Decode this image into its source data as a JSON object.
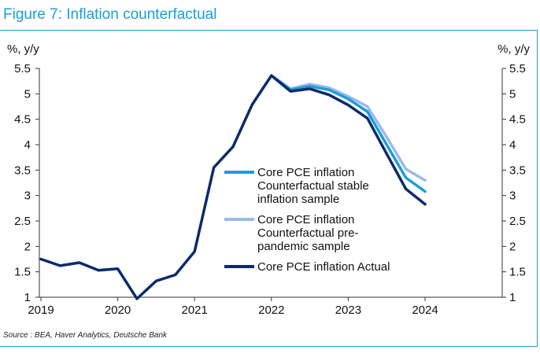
{
  "figure": {
    "title": "Figure 7: Inflation counterfactual",
    "source": "Source : BEA, Haver Analytics, Deutsche Bank"
  },
  "chart_data": {
    "type": "line",
    "title": "Figure 7: Inflation counterfactual",
    "ylabel_left": "%, y/y",
    "ylabel_right": "%, y/y",
    "ylim": [
      1,
      5.5
    ],
    "yticks": [
      1,
      1.5,
      2,
      2.5,
      3,
      3.5,
      4,
      4.5,
      5,
      5.5
    ],
    "ytick_labels": [
      "1",
      "1.5",
      "2",
      "2.5",
      "3",
      "3.5",
      "4",
      "4.5",
      "5",
      "5.5"
    ],
    "xlim": [
      2019.0,
      2025.0
    ],
    "xticks": [
      2019,
      2020,
      2021,
      2022,
      2023,
      2024
    ],
    "xtick_labels": [
      "2019",
      "2020",
      "2021",
      "2022",
      "2023",
      "2024"
    ],
    "grid": false,
    "legend_position": "center-right",
    "series": [
      {
        "name": "Core PCE inflation Counterfactual stable inflation sample",
        "legend_lines": [
          "Core PCE inflation",
          "Counterfactual stable",
          "inflation sample"
        ],
        "color": "#1a9fd6",
        "x": [
          2022.0,
          2022.25,
          2022.5,
          2022.75,
          2023.0,
          2023.25,
          2023.5,
          2023.75,
          2024.0
        ],
        "y": [
          5.36,
          5.08,
          5.15,
          5.08,
          4.9,
          4.65,
          4.0,
          3.35,
          3.08
        ]
      },
      {
        "name": "Core PCE inflation Counterfactual pre-pandemic sample",
        "legend_lines": [
          "Core PCE inflation",
          "Counterfactual pre-",
          "pandemic sample"
        ],
        "color": "#9db8ec",
        "x": [
          2022.0,
          2022.25,
          2022.5,
          2022.75,
          2023.0,
          2023.25,
          2023.5,
          2023.75,
          2024.0
        ],
        "y": [
          5.36,
          5.1,
          5.19,
          5.12,
          4.95,
          4.75,
          4.15,
          3.52,
          3.3
        ]
      },
      {
        "name": "Core PCE inflation Actual",
        "legend_lines": [
          "Core PCE inflation Actual"
        ],
        "color": "#0c2b6b",
        "x": [
          2019.0,
          2019.25,
          2019.5,
          2019.75,
          2020.0,
          2020.25,
          2020.5,
          2020.75,
          2021.0,
          2021.25,
          2021.5,
          2021.75,
          2022.0,
          2022.25,
          2022.5,
          2022.75,
          2023.0,
          2023.25,
          2023.5,
          2023.75,
          2024.0
        ],
        "y": [
          1.75,
          1.62,
          1.68,
          1.53,
          1.56,
          0.97,
          1.32,
          1.44,
          1.9,
          3.55,
          3.96,
          4.79,
          5.36,
          5.05,
          5.1,
          4.98,
          4.78,
          4.52,
          3.82,
          3.13,
          2.83
        ]
      }
    ]
  }
}
